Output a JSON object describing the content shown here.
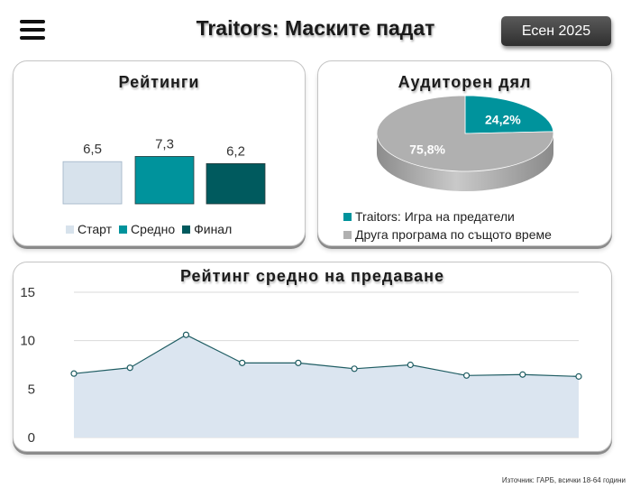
{
  "header": {
    "title": "Traitors: Маските падат",
    "season_label": "Есен 2025"
  },
  "ratings_panel": {
    "title": "Рейтинги"
  },
  "share_panel": {
    "title": "Аудиторен дял"
  },
  "trend_panel": {
    "title": "Рейтинг средно на предаване"
  },
  "source": "Източник: ГАРБ, всички 18-64 години",
  "colors": {
    "start": "#d7e2ec",
    "average": "#00939c",
    "final": "#005a5e",
    "other": "#b0b0b0",
    "area": "#dbe5f0",
    "line": "#1f5d63"
  },
  "chart_data": [
    {
      "type": "bar",
      "title": "Рейтинги",
      "categories": [
        "Старт",
        "Средно",
        "Финал"
      ],
      "values": [
        6.5,
        7.3,
        6.2
      ],
      "value_labels": [
        "6,5",
        "7,3",
        "6,2"
      ],
      "legend": "bottom"
    },
    {
      "type": "pie",
      "title": "Аудиторен дял",
      "labels": [
        "Traitors: Игра на предатели",
        "Друга програма по същото време"
      ],
      "values": [
        24.2,
        75.8
      ],
      "value_labels": [
        "24,2%",
        "75,8%"
      ],
      "legend": "bottom"
    },
    {
      "type": "area",
      "title": "Рейтинг средно на предаване",
      "x": [
        1,
        2,
        3,
        4,
        5,
        6,
        7,
        8,
        9,
        10
      ],
      "values": [
        6.6,
        7.2,
        10.6,
        7.7,
        7.7,
        7.1,
        7.5,
        6.4,
        6.5,
        6.3
      ],
      "ylim": [
        0,
        15
      ],
      "yticks": [
        "0",
        "5",
        "10",
        "15"
      ],
      "grid": true
    }
  ]
}
